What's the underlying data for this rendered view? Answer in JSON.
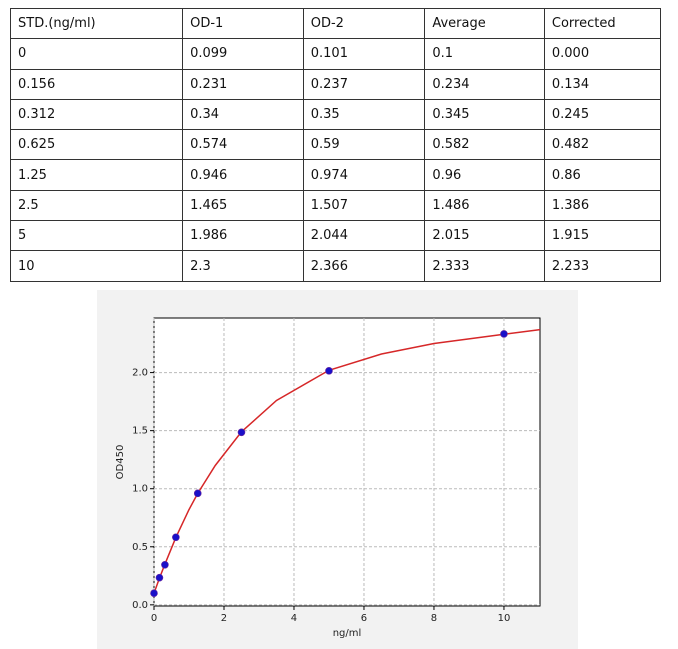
{
  "table": {
    "header": [
      "STD.(ng/ml)",
      "OD-1",
      "OD-2",
      "Average",
      "Corrected"
    ],
    "rows": [
      [
        "0",
        "0.099",
        "0.101",
        "0.1",
        "0.000"
      ],
      [
        "0.156",
        "0.231",
        "0.237",
        "0.234",
        "0.134"
      ],
      [
        "0.312",
        "0.34",
        "0.35",
        "0.345",
        "0.245"
      ],
      [
        "0.625",
        "0.574",
        "0.59",
        "0.582",
        "0.482"
      ],
      [
        "1.25",
        "0.946",
        "0.974",
        "0.96",
        "0.86"
      ],
      [
        "2.5",
        "1.465",
        "1.507",
        "1.486",
        "1.386"
      ],
      [
        "5",
        "1.986",
        "2.044",
        "2.015",
        "1.915"
      ],
      [
        "10",
        "2.3",
        "2.366",
        "2.333",
        "2.233"
      ]
    ]
  },
  "chart_data": {
    "type": "scatter",
    "xlabel": "ng/ml",
    "ylabel": "OD450",
    "xlim": [
      0,
      11.03
    ],
    "ylim": [
      -0.01,
      2.47
    ],
    "xticks": [
      0,
      2,
      4,
      6,
      8,
      10
    ],
    "yticks": [
      {
        "value": 0,
        "label": "0.0"
      },
      {
        "value": 0.5,
        "label": "0.5"
      },
      {
        "value": 1,
        "label": "1.0"
      },
      {
        "value": 1.5,
        "label": "1.5"
      },
      {
        "value": 2,
        "label": "2.0"
      }
    ],
    "grid": true,
    "series": [
      {
        "type": "scatter",
        "color": "#1a10c8",
        "x": [
          0,
          0.156,
          0.312,
          0.625,
          1.25,
          2.5,
          5,
          10
        ],
        "values": [
          0.1,
          0.234,
          0.345,
          0.582,
          0.96,
          1.486,
          2.015,
          2.333
        ]
      },
      {
        "type": "line",
        "color": "#d62728",
        "x": [
          0,
          0.156,
          0.312,
          0.625,
          1,
          1.25,
          1.75,
          2.5,
          3.5,
          5,
          6.5,
          8,
          10,
          11.03
        ],
        "values": [
          0.1,
          0.23,
          0.35,
          0.58,
          0.82,
          0.96,
          1.2,
          1.49,
          1.76,
          2.02,
          2.16,
          2.25,
          2.33,
          2.37
        ]
      }
    ]
  }
}
